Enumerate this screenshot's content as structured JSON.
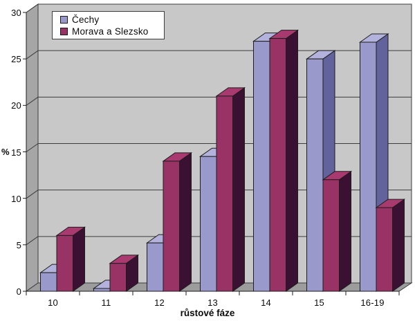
{
  "chart_data": {
    "type": "bar",
    "style": "3d-clustered-column",
    "title": "",
    "xlabel": "růstové fáze",
    "ylabel": "%",
    "categories": [
      "10",
      "11",
      "12",
      "13",
      "14",
      "15",
      "16-19"
    ],
    "series": [
      {
        "name": "Čechy",
        "values": [
          2,
          0.3,
          5.2,
          14.5,
          26.9,
          25,
          26.8
        ],
        "color_front": "#9999cc",
        "color_top": "#b2b2dd",
        "color_side": "#62629c"
      },
      {
        "name": "Morava a Slezsko",
        "values": [
          6,
          3,
          14,
          21,
          27.2,
          12,
          9
        ],
        "color_front": "#993366",
        "color_top": "#a93a70",
        "color_side": "#3a1132"
      }
    ],
    "y_ticks": [
      0,
      5,
      10,
      15,
      20,
      25,
      30
    ],
    "ylim": [
      0,
      30
    ],
    "grid": true,
    "legend_position": "top-left"
  },
  "colors": {
    "page_bg": "#ffffff",
    "back_wall": "#c8c8c8",
    "side_wall": "#a6a6a6",
    "floor": "#9c9c9c",
    "gridline": "#3c3c3c",
    "bar_outline": "#1d1d1d",
    "axis": "#1d1d1d"
  }
}
